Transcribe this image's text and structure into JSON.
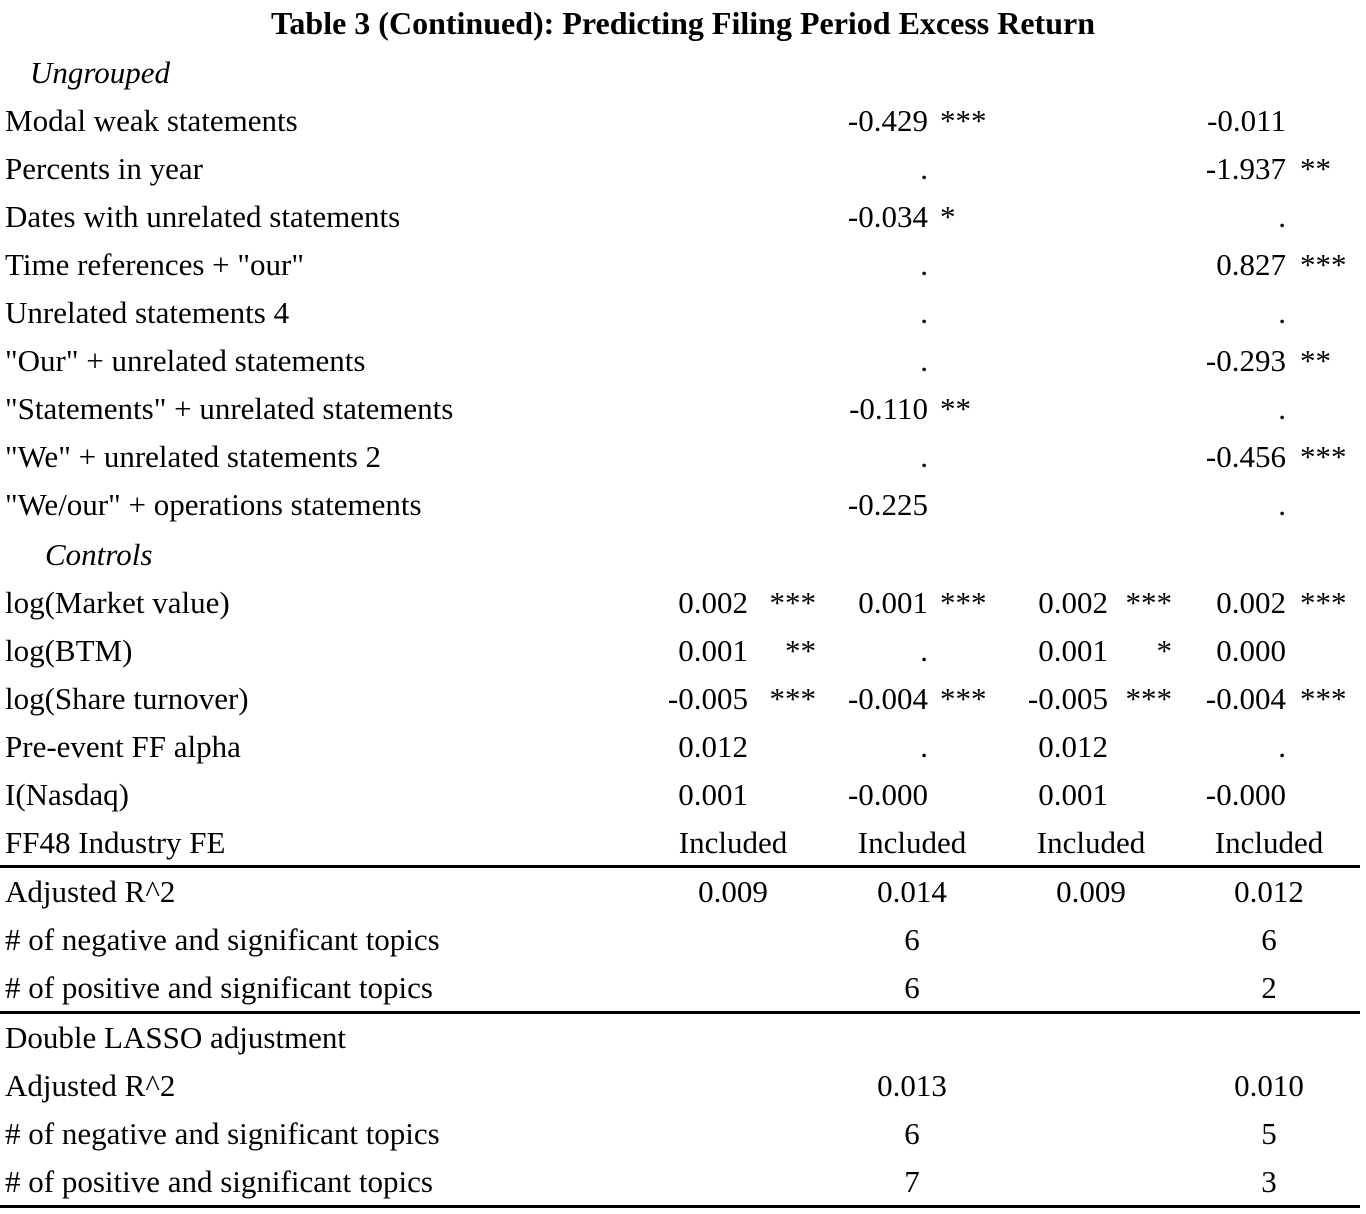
{
  "title": "Table 3 (Continued): Predicting Filing Period Excess Return",
  "sections": {
    "ungrouped": "Ungrouped",
    "controls": "Controls"
  },
  "rows": {
    "modal_weak": {
      "label": "Modal weak statements",
      "c2": "-0.429",
      "c2s": "***",
      "c4": "-0.011",
      "c4s": ""
    },
    "percents_year": {
      "label": "Percents in year",
      "c2": ".",
      "c2s": "",
      "c4": "-1.937",
      "c4s": "**"
    },
    "dates_unrelated": {
      "label": "Dates with unrelated statements",
      "c2": "-0.034",
      "c2s": "*",
      "c4": ".",
      "c4s": ""
    },
    "time_our": {
      "label": "Time references + \"our\"",
      "c2": ".",
      "c2s": "",
      "c4": "0.827",
      "c4s": "***"
    },
    "unrelated4": {
      "label": "Unrelated statements 4",
      "c2": ".",
      "c2s": "",
      "c4": ".",
      "c4s": ""
    },
    "our_unrelated": {
      "label": "\"Our\" + unrelated statements",
      "c2": ".",
      "c2s": "",
      "c4": "-0.293",
      "c4s": "**"
    },
    "statements_unrelated": {
      "label": "\"Statements\" + unrelated statements",
      "c2": "-0.110",
      "c2s": "**",
      "c4": ".",
      "c4s": ""
    },
    "we_unrelated2": {
      "label": "\"We\" + unrelated statements 2",
      "c2": ".",
      "c2s": "",
      "c4": "-0.456",
      "c4s": "***"
    },
    "weour_operations": {
      "label": "\"We/our\" + operations statements",
      "c2": "-0.225",
      "c2s": "",
      "c4": ".",
      "c4s": ""
    },
    "log_mv": {
      "label": "log(Market value)",
      "c1": "0.002",
      "c1s": "***",
      "c2": "0.001",
      "c2s": "***",
      "c3": "0.002",
      "c3s": "***",
      "c4": "0.002",
      "c4s": "***"
    },
    "log_btm": {
      "label": "log(BTM)",
      "c1": "0.001",
      "c1s": "**",
      "c2": ".",
      "c2s": "",
      "c3": "0.001",
      "c3s": "*",
      "c4": "0.000",
      "c4s": ""
    },
    "log_turnover": {
      "label": "log(Share turnover)",
      "c1": "-0.005",
      "c1s": "***",
      "c2": "-0.004",
      "c2s": "***",
      "c3": "-0.005",
      "c3s": "***",
      "c4": "-0.004",
      "c4s": "***"
    },
    "pre_alpha": {
      "label": "Pre-event FF alpha",
      "c1": "0.012",
      "c1s": "",
      "c2": ".",
      "c2s": "",
      "c3": "0.012",
      "c3s": "",
      "c4": ".",
      "c4s": ""
    },
    "nasdaq": {
      "label": "I(Nasdaq)",
      "c1": "0.001",
      "c1s": "",
      "c2": "-0.000",
      "c2s": "",
      "c3": "0.001",
      "c3s": "",
      "c4": "-0.000",
      "c4s": ""
    },
    "ff48": {
      "label": "FF48 Industry FE",
      "c1": "Included",
      "c2": "Included",
      "c3": "Included",
      "c4": "Included"
    },
    "adj_r2": {
      "label": "Adjusted R^2",
      "c1": "0.009",
      "c2": "0.014",
      "c3": "0.009",
      "c4": "0.012"
    },
    "neg_sig": {
      "label": "# of negative and significant topics",
      "c2": "6",
      "c4": "6"
    },
    "pos_sig": {
      "label": "# of positive and significant topics",
      "c2": "6",
      "c4": "2"
    },
    "lasso_header": {
      "label": "Double LASSO adjustment"
    },
    "lasso_adj_r2": {
      "label": "Adjusted R^2",
      "c2": "0.013",
      "c4": "0.010"
    },
    "lasso_neg_sig": {
      "label": "# of negative and significant topics",
      "c2": "6",
      "c4": "5"
    },
    "lasso_pos_sig": {
      "label": "# of positive and significant topics",
      "c2": "7",
      "c4": "3"
    }
  }
}
